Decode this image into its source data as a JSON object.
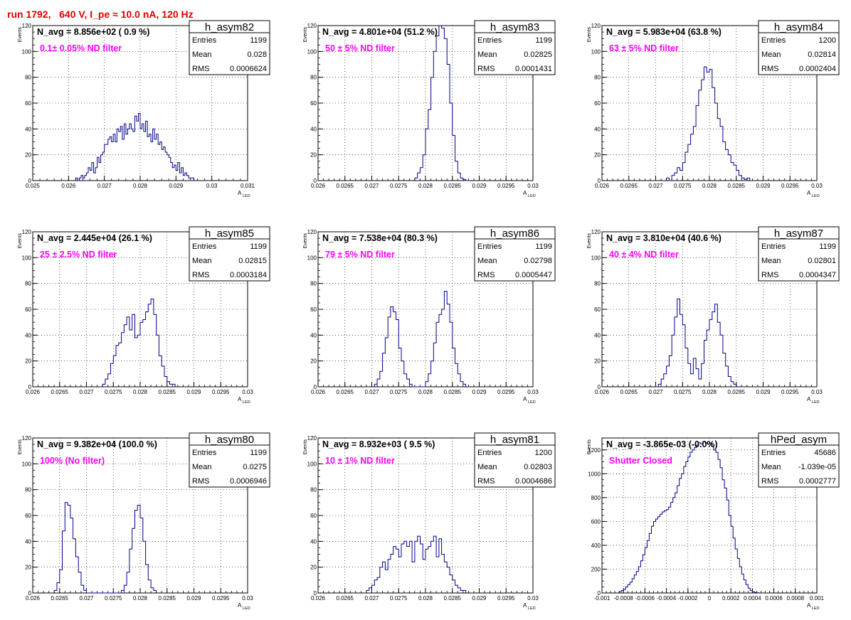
{
  "run_title": "run 1792,   640 V, I_pe ≈ 10.0 nA, 120 Hz",
  "y_axis_label": "Events",
  "x_axis_label_main": "A",
  "x_axis_label_sub": "LED",
  "stats_labels": {
    "entries": "Entries",
    "mean": "Mean",
    "rms": "RMS"
  },
  "colors": {
    "hist": "#00008b",
    "annotation": "#ff00ff",
    "title": "#e00000",
    "grid": "#000000"
  },
  "chart_data": [
    {
      "type": "bar",
      "name": "h_asym82",
      "navg": "N_avg = 8.856e+02 ( 0.9 %)",
      "filter": "0.1± 0.05% ND filter",
      "entries": "1199",
      "mean": "0.028",
      "rms": "0.0006624",
      "xlim": [
        0.025,
        0.031
      ],
      "ylim": [
        0,
        120
      ],
      "xticks": [
        0.025,
        0.026,
        0.027,
        0.028,
        0.029,
        0.03,
        0.031
      ],
      "xtick_labels": [
        "0.025",
        "0.026",
        "0.027",
        "0.028",
        "0.029",
        "0.03",
        "0.031"
      ],
      "yticks": [
        0,
        20,
        40,
        60,
        80,
        100,
        120
      ],
      "ytick_labels": [
        "0",
        "20",
        "40",
        "60",
        "80",
        "100",
        "120"
      ],
      "bin_start": 0.0262,
      "bin_width": 5e-05,
      "values": [
        2,
        0,
        2,
        4,
        2,
        4,
        6,
        10,
        8,
        14,
        6,
        10,
        18,
        14,
        20,
        22,
        28,
        28,
        32,
        34,
        30,
        36,
        30,
        40,
        38,
        42,
        32,
        44,
        36,
        40,
        44,
        40,
        38,
        50,
        46,
        52,
        40,
        44,
        38,
        46,
        34,
        36,
        30,
        40,
        32,
        36,
        28,
        30,
        24,
        26,
        22,
        20,
        18,
        14,
        10,
        12,
        8,
        14,
        6,
        10,
        4,
        6,
        4,
        2,
        2,
        2
      ]
    },
    {
      "type": "bar",
      "name": "h_asym83",
      "navg": "N_avg = 4.801e+04 (51.2 %)",
      "filter": "50 ± 5% ND filter",
      "entries": "1199",
      "mean": "0.02825",
      "rms": "0.0001431",
      "xlim": [
        0.026,
        0.03
      ],
      "ylim": [
        0,
        120
      ],
      "xticks": [
        0.026,
        0.0265,
        0.027,
        0.0275,
        0.028,
        0.0285,
        0.029,
        0.0295,
        0.03
      ],
      "xtick_labels": [
        "0.026",
        "0.0265",
        "0.027",
        "0.0275",
        "0.028",
        "0.0285",
        "0.029",
        "0.0295",
        "0.03"
      ],
      "yticks": [
        0,
        20,
        40,
        60,
        80,
        100,
        120
      ],
      "ytick_labels": [
        "0",
        "20",
        "40",
        "60",
        "80",
        "100",
        "120"
      ],
      "bin_start": 0.0278,
      "bin_width": 5e-05,
      "values": [
        2,
        6,
        10,
        20,
        40,
        55,
        80,
        100,
        112,
        120,
        118,
        110,
        90,
        60,
        35,
        15,
        6,
        2,
        1,
        0
      ]
    },
    {
      "type": "bar",
      "name": "h_asym84",
      "navg": "N_avg = 5.983e+04 (63.8 %)",
      "filter": "63 ± 5% ND filter",
      "entries": "1200",
      "mean": "0.02814",
      "rms": "0.0002404",
      "xlim": [
        0.026,
        0.03
      ],
      "ylim": [
        0,
        120
      ],
      "xticks": [
        0.026,
        0.0265,
        0.027,
        0.0275,
        0.028,
        0.0285,
        0.029,
        0.0295,
        0.03
      ],
      "xtick_labels": [
        "0.026",
        "0.0265",
        "0.027",
        "0.0275",
        "0.028",
        "0.0285",
        "0.029",
        "0.0295",
        "0.03"
      ],
      "yticks": [
        0,
        20,
        40,
        60,
        80,
        100,
        120
      ],
      "ytick_labels": [
        "0",
        "20",
        "40",
        "60",
        "80",
        "100",
        "120"
      ],
      "bin_start": 0.0272,
      "bin_width": 5e-05,
      "values": [
        2,
        0,
        4,
        6,
        10,
        8,
        14,
        22,
        28,
        36,
        42,
        58,
        70,
        78,
        88,
        84,
        86,
        72,
        60,
        48,
        42,
        30,
        24,
        20,
        14,
        12,
        8,
        4,
        2,
        1,
        2
      ]
    },
    {
      "type": "bar",
      "name": "h_asym85",
      "navg": "N_avg = 2.445e+04 (26.1 %)",
      "filter": "25 ± 2.5% ND filter",
      "entries": "1199",
      "mean": "0.02815",
      "rms": "0.0003184",
      "xlim": [
        0.026,
        0.03
      ],
      "ylim": [
        0,
        120
      ],
      "xticks": [
        0.026,
        0.0265,
        0.027,
        0.0275,
        0.028,
        0.0285,
        0.029,
        0.0295,
        0.03
      ],
      "xtick_labels": [
        "0.026",
        "0.0265",
        "0.027",
        "0.0275",
        "0.028",
        "0.0285",
        "0.029",
        "0.0295",
        "0.03"
      ],
      "yticks": [
        0,
        20,
        40,
        60,
        80,
        100,
        120
      ],
      "ytick_labels": [
        "0",
        "20",
        "40",
        "60",
        "80",
        "100",
        "120"
      ],
      "bin_start": 0.0273,
      "bin_width": 5e-05,
      "values": [
        2,
        6,
        10,
        18,
        24,
        32,
        34,
        42,
        48,
        54,
        44,
        56,
        38,
        40,
        50,
        52,
        58,
        64,
        68,
        56,
        40,
        24,
        16,
        8,
        4,
        2,
        2
      ]
    },
    {
      "type": "bar",
      "name": "h_asym86",
      "navg": "N_avg = 7.538e+04 (80.3 %)",
      "filter": "79 ± 5% ND filter",
      "entries": "1199",
      "mean": "0.02798",
      "rms": "0.0005447",
      "xlim": [
        0.026,
        0.03
      ],
      "ylim": [
        0,
        120
      ],
      "xticks": [
        0.026,
        0.0265,
        0.027,
        0.0275,
        0.028,
        0.0285,
        0.029,
        0.0295,
        0.03
      ],
      "xtick_labels": [
        "0.026",
        "0.0265",
        "0.027",
        "0.0275",
        "0.028",
        "0.0285",
        "0.029",
        "0.0295",
        "0.03"
      ],
      "yticks": [
        0,
        20,
        40,
        60,
        80,
        100,
        120
      ],
      "ytick_labels": [
        "0",
        "20",
        "40",
        "60",
        "80",
        "100",
        "120"
      ],
      "bin_start": 0.02705,
      "bin_width": 5e-05,
      "values": [
        2,
        6,
        12,
        26,
        38,
        54,
        62,
        58,
        52,
        30,
        20,
        10,
        6,
        2,
        0,
        0,
        0,
        0,
        0,
        4,
        10,
        20,
        34,
        50,
        56,
        60,
        74,
        64,
        50,
        30,
        18,
        10,
        4,
        2
      ]
    },
    {
      "type": "bar",
      "name": "h_asym87",
      "navg": "N_avg = 3.810e+04 (40.6 %)",
      "filter": "40 ± 4% ND filter",
      "entries": "1199",
      "mean": "0.02801",
      "rms": "0.0004347",
      "xlim": [
        0.026,
        0.03
      ],
      "ylim": [
        0,
        120
      ],
      "xticks": [
        0.026,
        0.0265,
        0.027,
        0.0275,
        0.028,
        0.0285,
        0.029,
        0.0295,
        0.03
      ],
      "xtick_labels": [
        "0.026",
        "0.0265",
        "0.027",
        "0.0275",
        "0.028",
        "0.0285",
        "0.029",
        "0.0295",
        "0.03"
      ],
      "yticks": [
        0,
        20,
        40,
        60,
        80,
        100,
        120
      ],
      "ytick_labels": [
        "0",
        "20",
        "40",
        "60",
        "80",
        "100",
        "120"
      ],
      "bin_start": 0.02705,
      "bin_width": 5e-05,
      "values": [
        2,
        6,
        10,
        16,
        24,
        40,
        54,
        68,
        56,
        48,
        30,
        18,
        10,
        22,
        14,
        6,
        18,
        36,
        44,
        52,
        58,
        64,
        50,
        40,
        26,
        16,
        8,
        4,
        2
      ]
    },
    {
      "type": "bar",
      "name": "h_asym80",
      "navg": "N_avg = 9.382e+04 (100.0 %)",
      "filter": "100% (No filter)",
      "entries": "1199",
      "mean": "0.0275",
      "rms": "0.0006946",
      "xlim": [
        0.026,
        0.03
      ],
      "ylim": [
        0,
        120
      ],
      "xticks": [
        0.026,
        0.0265,
        0.027,
        0.0275,
        0.028,
        0.0285,
        0.029,
        0.0295,
        0.03
      ],
      "xtick_labels": [
        "0.026",
        "0.0265",
        "0.027",
        "0.0275",
        "0.028",
        "0.0285",
        "0.029",
        "0.0295",
        "0.03"
      ],
      "yticks": [
        0,
        20,
        40,
        60,
        80,
        100,
        120
      ],
      "ytick_labels": [
        "0",
        "20",
        "40",
        "60",
        "80",
        "100",
        "120"
      ],
      "bin_start": 0.0264,
      "bin_width": 5e-05,
      "values": [
        2,
        8,
        18,
        48,
        70,
        68,
        58,
        42,
        28,
        16,
        6,
        2,
        0,
        0,
        0,
        0,
        0,
        0,
        0,
        0,
        0,
        0,
        0,
        0,
        0,
        2,
        6,
        16,
        34,
        50,
        64,
        68,
        58,
        40,
        22,
        10,
        4,
        2
      ]
    },
    {
      "type": "bar",
      "name": "h_asym81",
      "navg": "N_avg = 8.932e+03 ( 9.5 %)",
      "filter": "10 ± 1% ND filter",
      "entries": "1200",
      "mean": "0.02803",
      "rms": "0.0004686",
      "xlim": [
        0.026,
        0.03
      ],
      "ylim": [
        0,
        120
      ],
      "xticks": [
        0.026,
        0.0265,
        0.027,
        0.0275,
        0.028,
        0.0285,
        0.029,
        0.0295,
        0.03
      ],
      "xtick_labels": [
        "0.026",
        "0.0265",
        "0.027",
        "0.0275",
        "0.028",
        "0.0285",
        "0.029",
        "0.0295",
        "0.03"
      ],
      "yticks": [
        0,
        20,
        40,
        60,
        80,
        100,
        120
      ],
      "ytick_labels": [
        "0",
        "20",
        "40",
        "60",
        "80",
        "100",
        "120"
      ],
      "bin_start": 0.0269,
      "bin_width": 5e-05,
      "values": [
        2,
        4,
        6,
        10,
        12,
        20,
        24,
        18,
        26,
        30,
        36,
        34,
        28,
        38,
        40,
        36,
        40,
        24,
        40,
        44,
        38,
        26,
        34,
        36,
        40,
        44,
        28,
        42,
        30,
        24,
        20,
        14,
        10,
        6,
        4,
        2,
        2
      ]
    },
    {
      "type": "bar",
      "name": "hPed_asym",
      "navg": "N_avg = -3.865e-03 (-0.0%)",
      "filter": "Shutter Closed",
      "entries": "45686",
      "mean": "-1.039e-05",
      "rms": "0.0002777",
      "xlim": [
        -0.001,
        0.001
      ],
      "ylim": [
        0,
        1300
      ],
      "xticks": [
        -0.001,
        -0.0008,
        -0.0006,
        -0.0004,
        -0.0002,
        0,
        0.0002,
        0.0004,
        0.0006,
        0.0008,
        0.001
      ],
      "xtick_labels": [
        "-0.001",
        "-0.0008",
        "-0.0006",
        "-0.0004",
        "-0.0002",
        "0",
        "0.0002",
        "0.0004",
        "0.0006",
        "0.0008",
        "0.001"
      ],
      "yticks": [
        0,
        200,
        400,
        600,
        800,
        1000,
        1200
      ],
      "ytick_labels": [
        "0",
        "200",
        "400",
        "600",
        "800",
        "1000",
        "1200"
      ],
      "bin_start": -0.00084,
      "bin_width": 2e-05,
      "values": [
        10,
        20,
        30,
        50,
        70,
        90,
        120,
        150,
        180,
        220,
        270,
        320,
        380,
        440,
        500,
        560,
        600,
        620,
        640,
        660,
        680,
        690,
        700,
        720,
        760,
        800,
        840,
        900,
        960,
        1000,
        1060,
        1100,
        1140,
        1180,
        1200,
        1220,
        1240,
        1260,
        1250,
        1270,
        1260,
        1250,
        1260,
        1230,
        1200,
        1180,
        1120,
        1050,
        950,
        880,
        780,
        650,
        560,
        460,
        370,
        290,
        220,
        160,
        110,
        70,
        40,
        20,
        10,
        5,
        2
      ]
    }
  ]
}
